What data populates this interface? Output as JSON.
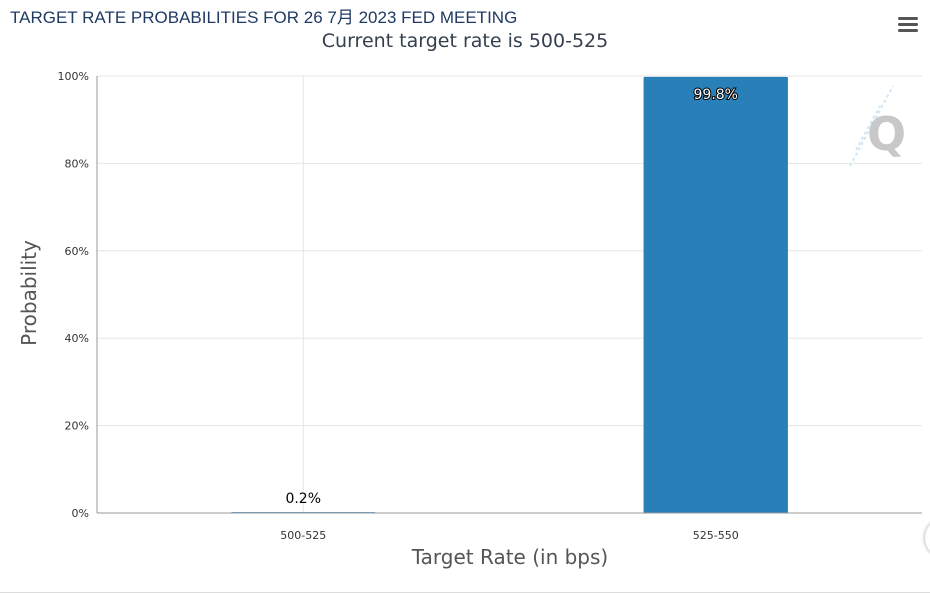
{
  "chart_data": {
    "type": "bar",
    "title": "TARGET RATE PROBABILITIES FOR 26 7月 2023 FED MEETING",
    "subtitle": "Current target rate is 500-525",
    "categories": [
      "500-525",
      "525-550"
    ],
    "values": [
      0.2,
      99.8
    ],
    "data_labels": [
      "0.2%",
      "99.8%"
    ],
    "xlabel": "Target Rate (in bps)",
    "ylabel": "Probability",
    "ylim": [
      0,
      100
    ],
    "yticks": [
      "0%",
      "20%",
      "40%",
      "60%",
      "80%",
      "100%"
    ],
    "grid": true,
    "bar_color": "#2980b9"
  },
  "toolbar": {
    "menu_icon": "hamburger-menu-icon"
  },
  "watermark": {
    "icon": "quikstrike-logo-icon"
  }
}
